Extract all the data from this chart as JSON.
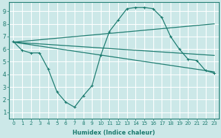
{
  "xlabel": "Humidex (Indice chaleur)",
  "bg_color": "#cce8e8",
  "grid_color": "#ffffff",
  "line_color": "#1a7a6e",
  "xlim": [
    -0.5,
    23.5
  ],
  "ylim": [
    0.5,
    9.7
  ],
  "xticks": [
    0,
    1,
    2,
    3,
    4,
    5,
    6,
    7,
    8,
    9,
    10,
    11,
    12,
    13,
    14,
    15,
    16,
    17,
    18,
    19,
    20,
    21,
    22,
    23
  ],
  "yticks": [
    1,
    2,
    3,
    4,
    5,
    6,
    7,
    8,
    9
  ],
  "curve_x": [
    0,
    1,
    2,
    3,
    4,
    5,
    6,
    7,
    8,
    9,
    10,
    11,
    12,
    13,
    14,
    15,
    16,
    17,
    18,
    19,
    20,
    21,
    22,
    23
  ],
  "curve_y": [
    6.6,
    5.9,
    5.7,
    5.7,
    4.4,
    2.6,
    1.8,
    1.4,
    2.3,
    3.1,
    5.5,
    7.4,
    8.3,
    9.2,
    9.3,
    9.3,
    9.2,
    8.5,
    7.0,
    6.0,
    5.2,
    5.1,
    4.3,
    4.1
  ],
  "regline1_x": [
    0,
    23
  ],
  "regline1_y": [
    6.1,
    5.5
  ],
  "regline2_x": [
    0,
    23
  ],
  "regline2_y": [
    6.1,
    7.8
  ],
  "regline3_x": [
    0,
    23
  ],
  "regline3_y": [
    6.1,
    4.2
  ],
  "xlabel_fontsize": 6.0,
  "tick_fontsize_x": 5.2,
  "tick_fontsize_y": 6.0
}
